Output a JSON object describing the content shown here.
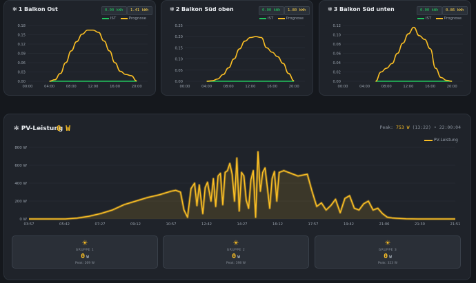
{
  "colors": {
    "ist": "#22c55e",
    "prognose": "#fbbf24",
    "background": "#15181d",
    "card": "#1f232a"
  },
  "legend": {
    "ist": "IST",
    "prognose": "Prognose"
  },
  "small_cards": [
    {
      "title": "1 Balkon Ost",
      "icon": "sun-icon",
      "ist_value": "0.00 kWh",
      "prognose_value": "1.41 kWh",
      "chart_data": {
        "type": "line",
        "ylim": [
          0,
          0.18
        ],
        "xlim": [
          0,
          22
        ],
        "x_tick_labels": [
          "00:00",
          "04:00",
          "08:00",
          "12:00",
          "16:00",
          "20:00"
        ],
        "y_tick_labels": [
          "0.00",
          "0.03",
          "0.06",
          "0.09",
          "0.12",
          "0.15",
          "0.18"
        ],
        "series": [
          {
            "name": "IST",
            "x": [
              4,
              20
            ],
            "values": [
              0,
              0
            ]
          },
          {
            "name": "Prognose",
            "x": [
              4,
              5,
              6,
              7,
              8,
              9,
              10,
              11,
              12,
              13,
              14,
              15,
              16,
              17,
              18,
              19,
              20
            ],
            "values": [
              0,
              0.005,
              0.025,
              0.06,
              0.098,
              0.128,
              0.152,
              0.165,
              0.165,
              0.158,
              0.13,
              0.098,
              0.06,
              0.032,
              0.022,
              0.018,
              0.001
            ]
          }
        ]
      }
    },
    {
      "title": "2 Balkon Süd oben",
      "icon": "sun-icon",
      "ist_value": "0.00 kWh",
      "prognose_value": "1.80 kWh",
      "chart_data": {
        "type": "line",
        "ylim": [
          0,
          0.25
        ],
        "xlim": [
          0,
          22
        ],
        "x_tick_labels": [
          "00:00",
          "04:00",
          "08:00",
          "12:00",
          "16:00",
          "20:00"
        ],
        "y_tick_labels": [
          "0.00",
          "0.05",
          "0.10",
          "0.15",
          "0.20",
          "0.25"
        ],
        "series": [
          {
            "name": "IST",
            "x": [
              4,
              20
            ],
            "values": [
              0,
              0
            ]
          },
          {
            "name": "Prognose",
            "x": [
              4,
              5,
              6,
              7,
              8,
              9,
              10,
              11,
              12,
              13,
              14,
              15,
              16,
              17,
              18,
              19,
              20
            ],
            "values": [
              0,
              0.002,
              0.01,
              0.03,
              0.06,
              0.1,
              0.145,
              0.18,
              0.196,
              0.2,
              0.196,
              0.15,
              0.13,
              0.11,
              0.08,
              0.035,
              0.002
            ]
          }
        ]
      }
    },
    {
      "title": "3 Balkon Süd unten",
      "icon": "sun-icon",
      "ist_value": "0.00 kWh",
      "prognose_value": "0.86 kWh",
      "chart_data": {
        "type": "line",
        "ylim": [
          0,
          0.12
        ],
        "xlim": [
          0,
          22
        ],
        "x_tick_labels": [
          "00:00",
          "04:00",
          "08:00",
          "12:00",
          "16:00",
          "20:00"
        ],
        "y_tick_labels": [
          "0.00",
          "0.02",
          "0.04",
          "0.06",
          "0.08",
          "0.10",
          "0.12"
        ],
        "series": [
          {
            "name": "IST",
            "x": [
              6,
              20
            ],
            "values": [
              0,
              0
            ]
          },
          {
            "name": "Prognose",
            "x": [
              6,
              7,
              8,
              9,
              10,
              11,
              12,
              13,
              14,
              15,
              16,
              17,
              18,
              19,
              20
            ],
            "values": [
              0,
              0.02,
              0.028,
              0.038,
              0.06,
              0.082,
              0.102,
              0.116,
              0.098,
              0.09,
              0.07,
              0.028,
              0.008,
              0.002,
              0
            ]
          }
        ]
      }
    }
  ],
  "pv": {
    "title": "PV-Leistung",
    "current_value": "0 W",
    "peak_label": "Peak:",
    "peak_value": "753 W",
    "peak_time": "(13:22)",
    "separator": "•",
    "timestamp": "22:00:04",
    "legend_label": "PV-Leistung",
    "chart_data": {
      "type": "area",
      "xlim": [
        3.95,
        22.1
      ],
      "ylim": [
        0,
        800
      ],
      "y_tick_labels": [
        "0 W",
        "200 W",
        "400 W",
        "600 W",
        "800 W"
      ],
      "x_tick_labels": [
        "03:57",
        "05:42",
        "07:27",
        "09:12",
        "10:57",
        "12:42",
        "14:27",
        "16:12",
        "17:57",
        "19:42",
        "21:06",
        "21:30",
        "21:51"
      ],
      "series": [
        {
          "name": "PV-Leistung",
          "x": [
            3.95,
            5.5,
            6.0,
            6.5,
            7.0,
            7.5,
            8.0,
            8.5,
            9.0,
            9.5,
            10.0,
            10.2,
            10.4,
            10.55,
            10.7,
            10.85,
            11.0,
            11.1,
            11.2,
            11.35,
            11.45,
            11.55,
            11.7,
            11.8,
            11.9,
            12.0,
            12.1,
            12.2,
            12.3,
            12.4,
            12.5,
            12.6,
            12.7,
            12.8,
            12.9,
            13.0,
            13.1,
            13.2,
            13.3,
            13.4,
            13.5,
            13.6,
            13.7,
            13.8,
            13.9,
            14.0,
            14.1,
            14.2,
            14.3,
            14.4,
            14.5,
            14.6,
            14.8,
            15.0,
            15.2,
            15.4,
            15.6,
            15.8,
            16.0,
            16.2,
            16.4,
            16.6,
            16.8,
            17.0,
            17.2,
            17.4,
            17.6,
            17.8,
            18.0,
            18.2,
            18.4,
            18.6,
            18.8,
            19.0,
            19.2,
            19.4,
            19.6,
            19.8,
            20.0,
            20.5,
            21.0,
            22.1
          ],
          "values": [
            0,
            0,
            10,
            30,
            60,
            100,
            160,
            200,
            240,
            270,
            310,
            320,
            300,
            100,
            20,
            340,
            400,
            150,
            380,
            60,
            350,
            410,
            200,
            450,
            140,
            480,
            510,
            160,
            520,
            540,
            620,
            500,
            200,
            680,
            90,
            520,
            480,
            210,
            120,
            440,
            540,
            20,
            750,
            310,
            520,
            570,
            350,
            120,
            450,
            530,
            200,
            520,
            540,
            520,
            500,
            480,
            490,
            500,
            310,
            140,
            180,
            100,
            150,
            220,
            70,
            230,
            260,
            120,
            100,
            170,
            200,
            100,
            120,
            60,
            20,
            12,
            8,
            5,
            2,
            0,
            0,
            0
          ]
        }
      ]
    }
  },
  "groups": [
    {
      "icon": "sun-icon",
      "name": "GRUPPE 1",
      "value": "0",
      "unit": "W",
      "peak": "Peak: 269 W"
    },
    {
      "icon": "sun-icon",
      "name": "GRUPPE 2",
      "value": "0",
      "unit": "W",
      "peak": "Peak: 198 W"
    },
    {
      "icon": "sun-icon",
      "name": "GRUPPE 3",
      "value": "0",
      "unit": "W",
      "peak": "Peak: 323 W"
    }
  ]
}
